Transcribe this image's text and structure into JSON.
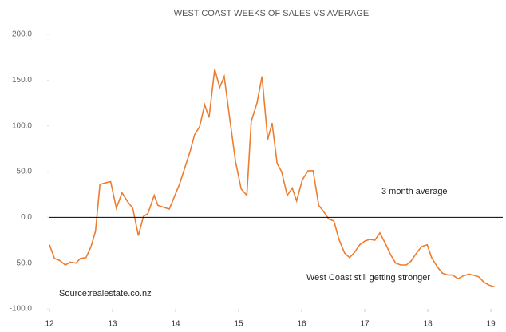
{
  "chart_data": {
    "type": "line",
    "title": "WEST COAST WEEKS OF SALES VS AVERAGE",
    "annotations": [
      "3 month average",
      "West Coast still getting stronger",
      "Source:realestate.co.nz"
    ],
    "color": "#ed7d31",
    "x": [
      12.0,
      12.08,
      12.16,
      12.25,
      12.33,
      12.42,
      12.49,
      12.58,
      12.66,
      12.73,
      12.8,
      12.9,
      12.97,
      13.06,
      13.15,
      13.24,
      13.32,
      13.41,
      13.49,
      13.56,
      13.66,
      13.72,
      13.81,
      13.9,
      13.97,
      14.06,
      14.15,
      14.23,
      14.3,
      14.38,
      14.46,
      14.53,
      14.62,
      14.7,
      14.77,
      14.86,
      14.95,
      15.04,
      15.13,
      15.2,
      15.29,
      15.37,
      15.46,
      15.53,
      15.61,
      15.68,
      15.77,
      15.85,
      15.92,
      16.01,
      16.1,
      16.18,
      16.27,
      16.34,
      16.43,
      16.51,
      16.59,
      16.68,
      16.76,
      16.84,
      16.92,
      17.0,
      17.08,
      17.16,
      17.24,
      17.33,
      17.41,
      17.49,
      17.57,
      17.66,
      17.73,
      17.82,
      17.9,
      17.99,
      18.06,
      18.15,
      18.23,
      18.32,
      18.39,
      18.48,
      18.56,
      18.65,
      18.72,
      18.81,
      18.89,
      18.97,
      19.06
    ],
    "values": [
      -30,
      -45,
      -47,
      -52,
      -49,
      -50,
      -45,
      -44,
      -32,
      -15,
      36,
      38,
      39,
      10,
      27,
      17,
      10,
      -20,
      1,
      4,
      24,
      13,
      11,
      9,
      21,
      36,
      55,
      72,
      90,
      99,
      123,
      109,
      162,
      142,
      154,
      107,
      61,
      31,
      24,
      105,
      125,
      154,
      85,
      103,
      59,
      50,
      24,
      32,
      18,
      41,
      51,
      51,
      13,
      7,
      -2,
      -4,
      -24,
      -39,
      -44,
      -38,
      -30,
      -26,
      -24,
      -25,
      -17,
      -29,
      -41,
      -50,
      -52,
      -52,
      -48,
      -39,
      -32,
      -30,
      -44,
      -54,
      -61,
      -63,
      -63,
      -67,
      -64,
      -62,
      -63,
      -65,
      -71,
      -74,
      -76
    ],
    "xlim": [
      12,
      19.1
    ],
    "xticks": [
      12,
      13,
      14,
      15,
      16,
      17,
      18,
      19
    ],
    "ylim": [
      -100,
      200
    ],
    "yticks": [
      {
        "value": 200,
        "label": "200.0"
      },
      {
        "value": 150,
        "label": "150.0"
      },
      {
        "value": 100,
        "label": "100.0"
      },
      {
        "value": 50,
        "label": "50.0"
      },
      {
        "value": 0,
        "label": "0.0"
      },
      {
        "value": -50,
        "label": "-50.0"
      },
      {
        "value": -100,
        "label": "-100.0"
      }
    ]
  }
}
